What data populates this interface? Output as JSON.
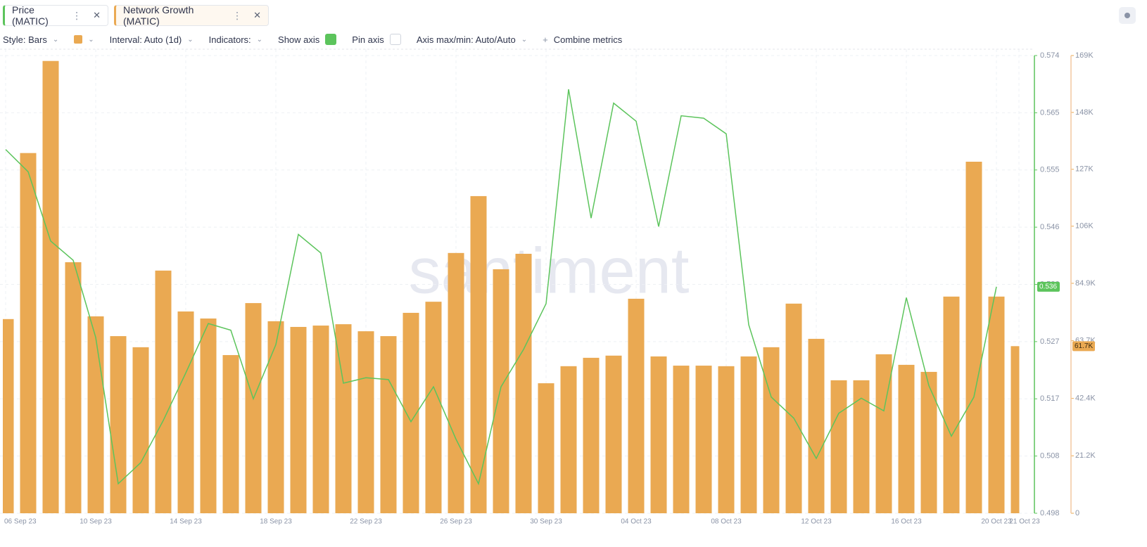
{
  "tabs": [
    "Price (MATIC)",
    "Network Growth (MATIC)"
  ],
  "toolbar": {
    "style": "Style: Bars",
    "interval": "Interval: Auto (1d)",
    "indicators": "Indicators:",
    "show_axis": "Show axis",
    "pin_axis": "Pin axis",
    "axis_maxmin": "Axis max/min: Auto/Auto",
    "combine": "Combine metrics"
  },
  "chart_data": {
    "type": "bar",
    "watermark": "santiment",
    "categories": [
      "06 Sep 23",
      null,
      null,
      null,
      "10 Sep 23",
      null,
      null,
      null,
      "14 Sep 23",
      null,
      null,
      null,
      "18 Sep 23",
      null,
      null,
      null,
      "22 Sep 23",
      null,
      null,
      null,
      "26 Sep 23",
      null,
      null,
      null,
      "30 Sep 23",
      null,
      null,
      null,
      "04 Oct 23",
      null,
      null,
      null,
      "08 Oct 23",
      null,
      null,
      null,
      "12 Oct 23",
      null,
      null,
      null,
      "16 Oct 23",
      null,
      null,
      null,
      "20 Oct 23",
      "21 Oct 23"
    ],
    "series": [
      {
        "name": "Price (MATIC)",
        "type": "line",
        "axis": "y",
        "color": "#5cc45c",
        "current_label": "0.536",
        "values": [
          0.5584,
          0.5547,
          0.5432,
          0.54,
          0.5272,
          0.5029,
          0.5064,
          0.5134,
          0.5213,
          0.5295,
          0.5284,
          0.517,
          0.526,
          0.5443,
          0.5412,
          0.5196,
          0.5205,
          0.5202,
          0.5132,
          0.519,
          0.5103,
          0.5029,
          0.519,
          0.5252,
          0.5328,
          0.5684,
          0.547,
          0.5661,
          0.5631,
          0.5456,
          0.564,
          0.5636,
          0.561,
          0.5293,
          0.5173,
          0.5138,
          0.5071,
          0.5146,
          0.5171,
          0.515,
          0.5338,
          0.5192,
          0.5108,
          0.5173,
          0.5356,
          null
        ]
      },
      {
        "name": "Network Growth (MATIC)",
        "type": "bar",
        "axis": "y2",
        "color": "#eaa952",
        "current_label": "61.7K",
        "values": [
          71700,
          133000,
          167000,
          92700,
          72700,
          65400,
          61300,
          89600,
          74500,
          71900,
          58400,
          77600,
          70900,
          68800,
          69300,
          69800,
          67200,
          65400,
          74000,
          78100,
          96100,
          117100,
          90100,
          95800,
          48000,
          54300,
          57400,
          58200,
          79200,
          57900,
          54500,
          54500,
          54300,
          57900,
          61300,
          77400,
          64400,
          49100,
          49100,
          58700,
          54800,
          52200,
          80000,
          129800,
          80000,
          61700
        ]
      }
    ],
    "ylim": [
      0.498,
      0.574
    ],
    "yticks": [
      0.498,
      {
        "value": 0.5075,
        "label": "0.508"
      },
      0.517,
      {
        "value": 0.5265,
        "label": "0.527"
      },
      0.536,
      {
        "value": 0.5455,
        "label": "0.546"
      },
      0.555,
      {
        "value": 0.5645,
        "label": "0.565"
      },
      0.574
    ],
    "y2lim": [
      0,
      169000
    ],
    "y2ticks": [
      0,
      {
        "value": 21200,
        "label": "21.2K"
      },
      {
        "value": 42400,
        "label": "42.4K"
      },
      {
        "value": 63700,
        "label": "63.7K"
      },
      {
        "value": 84900,
        "label": "84.9K"
      },
      {
        "value": 106000,
        "label": "106K"
      },
      {
        "value": 127000,
        "label": "127K"
      },
      {
        "value": 148000,
        "label": "148K"
      },
      {
        "value": 169000,
        "label": "169K"
      }
    ],
    "grid": true
  }
}
